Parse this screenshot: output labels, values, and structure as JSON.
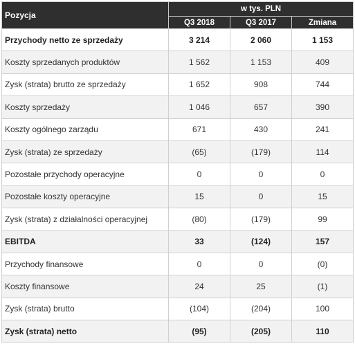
{
  "header": {
    "position_label": "Pozycja",
    "unit_label": "w tys. PLN",
    "columns": [
      "Q3 2018",
      "Q3 2017",
      "Zmiana"
    ]
  },
  "rows": [
    {
      "label": "Przychody netto ze sprzedaży",
      "q3_2018": "3 214",
      "q3_2017": "2 060",
      "change": "1 153",
      "bold": true
    },
    {
      "label": "Koszty sprzedanych produktów",
      "q3_2018": "1 562",
      "q3_2017": "1 153",
      "change": "409",
      "bold": false
    },
    {
      "label": "Zysk (strata) brutto ze sprzedaży",
      "q3_2018": "1 652",
      "q3_2017": "908",
      "change": "744",
      "bold": false
    },
    {
      "label": "Koszty sprzedaży",
      "q3_2018": "1 046",
      "q3_2017": "657",
      "change": "390",
      "bold": false
    },
    {
      "label": "Koszty ogólnego zarządu",
      "q3_2018": "671",
      "q3_2017": "430",
      "change": "241",
      "bold": false
    },
    {
      "label": "Zysk (strata) ze sprzedaży",
      "q3_2018": "(65)",
      "q3_2017": "(179)",
      "change": "114",
      "bold": false
    },
    {
      "label": "Pozostałe przychody operacyjne",
      "q3_2018": "0",
      "q3_2017": "0",
      "change": "0",
      "bold": false
    },
    {
      "label": "Pozostałe koszty operacyjne",
      "q3_2018": "15",
      "q3_2017": "0",
      "change": "15",
      "bold": false
    },
    {
      "label": "Zysk (strata) z działalności operacyjnej",
      "q3_2018": "(80)",
      "q3_2017": "(179)",
      "change": "99",
      "bold": false
    },
    {
      "label": "EBITDA",
      "q3_2018": "33",
      "q3_2017": "(124)",
      "change": "157",
      "bold": true
    },
    {
      "label": "Przychody finansowe",
      "q3_2018": "0",
      "q3_2017": "0",
      "change": "(0)",
      "bold": false
    },
    {
      "label": "Koszty finansowe",
      "q3_2018": "24",
      "q3_2017": "25",
      "change": "(1)",
      "bold": false
    },
    {
      "label": "Zysk (strata) brutto",
      "q3_2018": "(104)",
      "q3_2017": "(204)",
      "change": "100",
      "bold": false
    },
    {
      "label": "Zysk (strata) netto",
      "q3_2018": "(95)",
      "q3_2017": "(205)",
      "change": "110",
      "bold": true
    }
  ],
  "colors": {
    "header_bg": "#2f2f2f",
    "header_text": "#ffffff",
    "row_alt": "#f2f2f2",
    "border": "#d0d0d0"
  }
}
